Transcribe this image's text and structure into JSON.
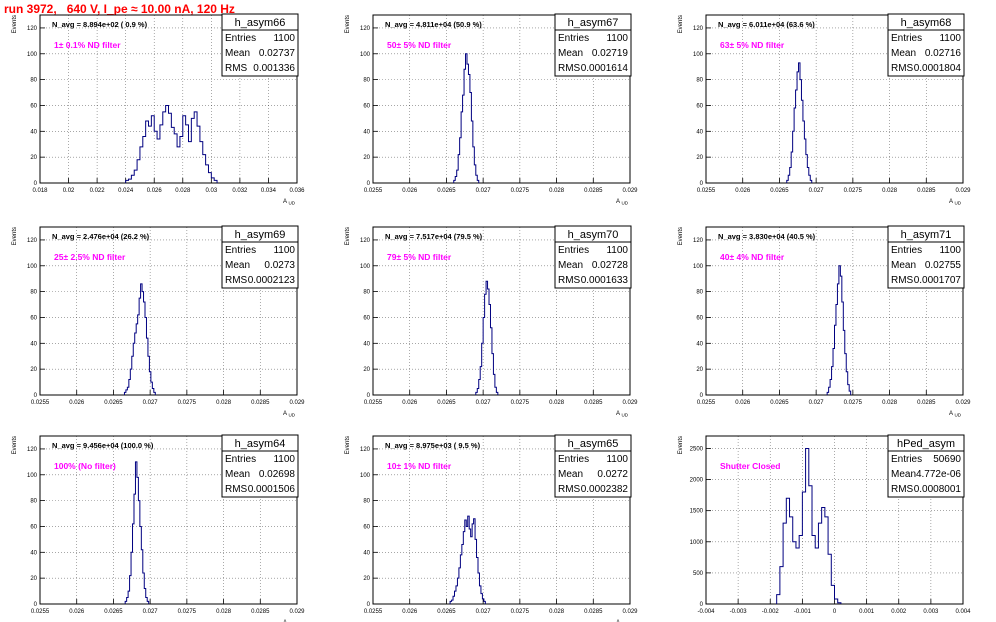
{
  "page_title": "run 3972,   640 V, I_pe ≈ 10.00 nA, 120 Hz",
  "colors": {
    "histogram": "#000080",
    "annotation": "#ff00ff",
    "title": "#ff0000",
    "grid": "#000000"
  },
  "chart_data": [
    {
      "type": "histogram",
      "name": "h_asym66",
      "stats": {
        "entries": "1100",
        "mean": "0.02737",
        "rms": "0.001336"
      },
      "navg": "N_avg = 8.894e+02 ( 0.9 %)",
      "annotation": "1± 0.1% ND filter",
      "ylabel": "Events",
      "xlabel": "A_UD",
      "grid": true,
      "xlim": [
        0.018,
        0.036
      ],
      "ylim": [
        0,
        130
      ],
      "xticks": [
        "0.018",
        "0.02",
        "0.022",
        "0.024",
        "0.026",
        "0.028",
        "0.03",
        "0.032",
        "0.034",
        "0.036"
      ],
      "yticks": [
        0,
        20,
        40,
        60,
        80,
        100,
        120
      ],
      "bins": {
        "start": 0.024,
        "width": 0.0002,
        "counts": [
          2,
          3,
          6,
          10,
          18,
          28,
          36,
          48,
          44,
          52,
          40,
          34,
          45,
          55,
          60,
          54,
          43,
          38,
          28,
          36,
          52,
          45,
          32,
          50,
          55,
          44,
          32,
          22,
          14,
          8,
          4,
          2
        ]
      }
    },
    {
      "type": "histogram",
      "name": "h_asym67",
      "stats": {
        "entries": "1100",
        "mean": "0.02719",
        "rms": "0.0001614"
      },
      "navg": "N_avg = 4.811e+04 (50.9 %)",
      "annotation": "50± 5% ND filter",
      "ylabel": "Events",
      "xlabel": "A_UD",
      "grid": true,
      "xlim": [
        0.0255,
        0.029
      ],
      "ylim": [
        0,
        130
      ],
      "xticks": [
        "0.0255",
        "0.026",
        "0.0265",
        "0.027",
        "0.0275",
        "0.028",
        "0.0285",
        "0.029"
      ],
      "yticks": [
        0,
        20,
        40,
        60,
        80,
        100,
        120
      ],
      "bins": {
        "start": 0.0266,
        "width": 2e-05,
        "counts": [
          2,
          5,
          10,
          22,
          35,
          55,
          68,
          88,
          100,
          92,
          84,
          70,
          48,
          28,
          14,
          6,
          2
        ]
      }
    },
    {
      "type": "histogram",
      "name": "h_asym68",
      "stats": {
        "entries": "1100",
        "mean": "0.02716",
        "rms": "0.0001804"
      },
      "navg": "N_avg = 6.011e+04 (63.6 %)",
      "annotation": "63± 5% ND filter",
      "ylabel": "Events",
      "xlabel": "A_UD",
      "grid": true,
      "xlim": [
        0.0255,
        0.029
      ],
      "ylim": [
        0,
        130
      ],
      "xticks": [
        "0.0255",
        "0.026",
        "0.0265",
        "0.027",
        "0.0275",
        "0.028",
        "0.0285",
        "0.029"
      ],
      "yticks": [
        0,
        20,
        40,
        60,
        80,
        100,
        120
      ],
      "bins": {
        "start": 0.0266,
        "width": 2e-05,
        "counts": [
          2,
          6,
          12,
          24,
          40,
          58,
          72,
          86,
          93,
          80,
          64,
          48,
          34,
          22,
          12,
          6,
          2
        ]
      }
    },
    {
      "type": "histogram",
      "name": "h_asym69",
      "stats": {
        "entries": "1100",
        "mean": "0.0273",
        "rms": "0.0002123"
      },
      "navg": "N_avg = 2.476e+04 (26.2 %)",
      "annotation": "25± 2.5% ND filter",
      "ylabel": "Events",
      "xlabel": "A_UD",
      "grid": true,
      "xlim": [
        0.0255,
        0.029
      ],
      "ylim": [
        0,
        130
      ],
      "xticks": [
        "0.0255",
        "0.026",
        "0.0265",
        "0.027",
        "0.0275",
        "0.028",
        "0.0285",
        "0.029"
      ],
      "yticks": [
        0,
        20,
        40,
        60,
        80,
        100,
        120
      ],
      "bins": {
        "start": 0.02665,
        "width": 2e-05,
        "counts": [
          2,
          4,
          6,
          12,
          20,
          30,
          40,
          48,
          55,
          62,
          75,
          86,
          80,
          72,
          60,
          44,
          30,
          18,
          10,
          5,
          2
        ]
      }
    },
    {
      "type": "histogram",
      "name": "h_asym70",
      "stats": {
        "entries": "1100",
        "mean": "0.02728",
        "rms": "0.0001633"
      },
      "navg": "N_avg = 7.517e+04 (79.5 %)",
      "annotation": "79± 5% ND filter",
      "ylabel": "Events",
      "xlabel": "A_UD",
      "grid": true,
      "xlim": [
        0.0255,
        0.029
      ],
      "ylim": [
        0,
        130
      ],
      "xticks": [
        "0.0255",
        "0.026",
        "0.0265",
        "0.027",
        "0.0275",
        "0.028",
        "0.0285",
        "0.029"
      ],
      "yticks": [
        0,
        20,
        40,
        60,
        80,
        100,
        120
      ],
      "bins": {
        "start": 0.0269,
        "width": 2e-05,
        "counts": [
          2,
          5,
          12,
          22,
          40,
          60,
          78,
          88,
          82,
          70,
          52,
          32,
          16,
          6,
          2
        ]
      }
    },
    {
      "type": "histogram",
      "name": "h_asym71",
      "stats": {
        "entries": "1100",
        "mean": "0.02755",
        "rms": "0.0001707"
      },
      "navg": "N_avg = 3.830e+04 (40.5 %)",
      "annotation": "40± 4% ND filter",
      "ylabel": "Events",
      "xlabel": "A_UD",
      "grid": true,
      "xlim": [
        0.0255,
        0.029
      ],
      "ylim": [
        0,
        130
      ],
      "xticks": [
        "0.0255",
        "0.026",
        "0.0265",
        "0.027",
        "0.0275",
        "0.028",
        "0.0285",
        "0.029"
      ],
      "yticks": [
        0,
        20,
        40,
        60,
        80,
        100,
        120
      ],
      "bins": {
        "start": 0.02715,
        "width": 2e-05,
        "counts": [
          2,
          6,
          12,
          22,
          36,
          54,
          70,
          86,
          100,
          92,
          72,
          50,
          32,
          18,
          8,
          3
        ]
      }
    },
    {
      "type": "histogram",
      "name": "h_asym64",
      "stats": {
        "entries": "1100",
        "mean": "0.02698",
        "rms": "0.0001506"
      },
      "navg": "N_avg = 9.456e+04 (100.0 %)",
      "annotation": "100% (No filter)",
      "ylabel": "Events",
      "xlabel": "A_UD",
      "grid": true,
      "xlim": [
        0.0255,
        0.029
      ],
      "ylim": [
        0,
        130
      ],
      "xticks": [
        "0.0255",
        "0.026",
        "0.0265",
        "0.027",
        "0.0275",
        "0.028",
        "0.0285",
        "0.029"
      ],
      "yticks": [
        0,
        20,
        40,
        60,
        80,
        100,
        120
      ],
      "bins": {
        "start": 0.02666,
        "width": 2e-05,
        "counts": [
          2,
          5,
          10,
          22,
          40,
          62,
          85,
          110,
          98,
          80,
          60,
          42,
          24,
          12,
          5,
          2
        ]
      }
    },
    {
      "type": "histogram",
      "name": "h_asym65",
      "stats": {
        "entries": "1100",
        "mean": "0.0272",
        "rms": "0.0002382"
      },
      "navg": "N_avg = 8.975e+03 ( 9.5 %)",
      "annotation": "10± 1% ND filter",
      "ylabel": "Events",
      "xlabel": "A_UD",
      "grid": true,
      "xlim": [
        0.0255,
        0.029
      ],
      "ylim": [
        0,
        130
      ],
      "xticks": [
        "0.0255",
        "0.026",
        "0.0265",
        "0.027",
        "0.0275",
        "0.028",
        "0.0285",
        "0.029"
      ],
      "yticks": [
        0,
        20,
        40,
        60,
        80,
        100,
        120
      ],
      "bins": {
        "start": 0.02655,
        "width": 2e-05,
        "counts": [
          2,
          3,
          6,
          10,
          14,
          20,
          28,
          38,
          46,
          56,
          65,
          60,
          68,
          58,
          52,
          62,
          66,
          50,
          36,
          24,
          14,
          8,
          4,
          2
        ]
      }
    },
    {
      "type": "histogram",
      "name": "hPed_asym",
      "stats": {
        "entries": "50690",
        "mean": "4.772e-06",
        "rms": "0.0008001"
      },
      "navg": "",
      "annotation": "Shutter Closed",
      "ylabel": "Events",
      "xlabel": "",
      "grid": true,
      "xlim": [
        -0.004,
        0.004
      ],
      "ylim": [
        0,
        2700
      ],
      "xticks": [
        "-0.004",
        "-0.003",
        "-0.002",
        "-0.001",
        "0",
        "0.001",
        "0.002",
        "0.003",
        "0.004"
      ],
      "yticks": [
        0,
        500,
        1000,
        1500,
        2000,
        2500
      ],
      "bins": {
        "start": -0.0018,
        "width": 0.0001,
        "counts": [
          150,
          600,
          1300,
          1700,
          1400,
          1000,
          900,
          1100,
          1800,
          2500,
          1900,
          1100,
          900,
          1300,
          1550,
          1400,
          800,
          300,
          80,
          20
        ]
      }
    }
  ]
}
